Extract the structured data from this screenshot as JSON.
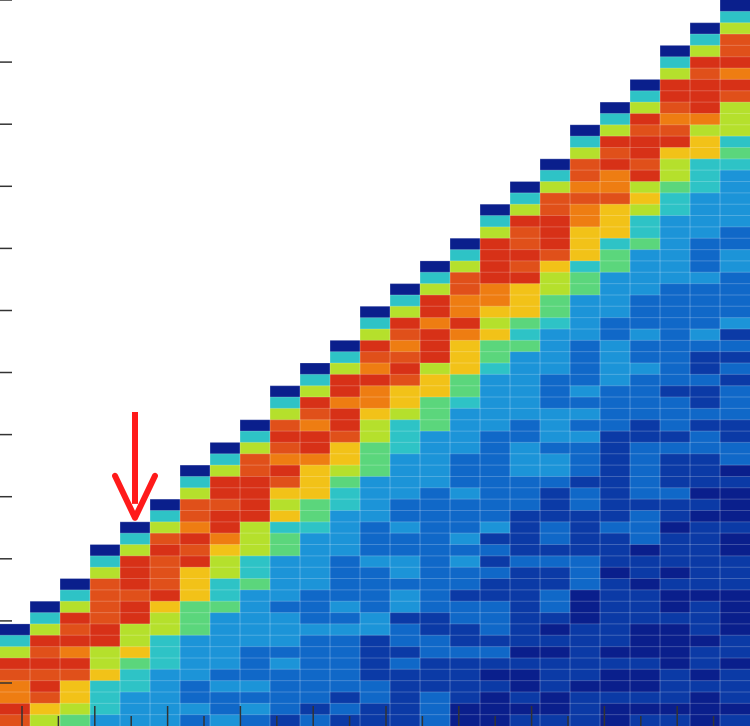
{
  "chart_data": {
    "type": "heatmap",
    "n_cols": 25,
    "n_rows": 64,
    "grid": true,
    "colormap": [
      "#0a1f8c",
      "#0b3aa6",
      "#1068c8",
      "#1c94d8",
      "#2ec3c6",
      "#5bd67c",
      "#b5e02c",
      "#f2c218",
      "#ee7d12",
      "#e0501a",
      "#d73117"
    ],
    "annotation": {
      "type": "arrow",
      "color": "#ff1a1a",
      "column": 4
    },
    "y_ticks_left": 12,
    "x_ticks_bottom": 20
  }
}
